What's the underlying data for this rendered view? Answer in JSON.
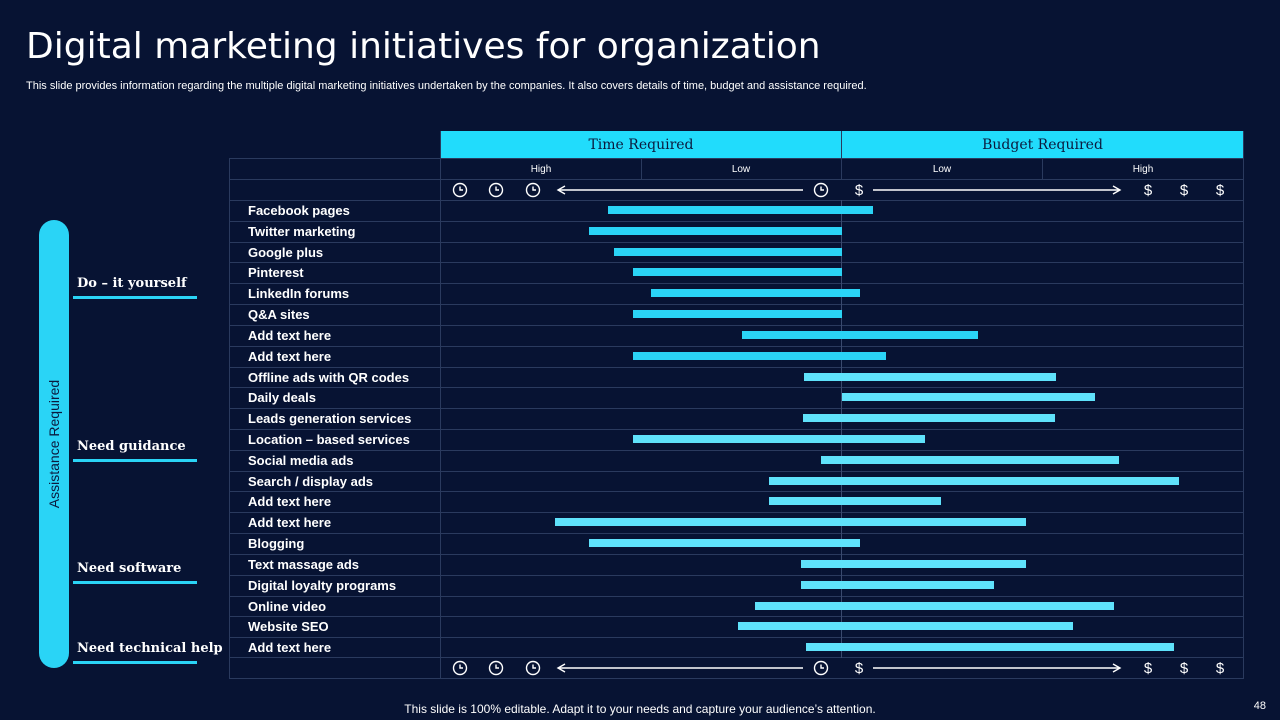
{
  "title": "Digital marketing initiatives for organization",
  "subtitle": "This slide provides information regarding the multiple digital marketing initiatives undertaken by the companies. It also covers details of time, budget and assistance required.",
  "side_label": "Assistance Required",
  "categories": [
    "Do – it yourself",
    "Need guidance",
    "Need software",
    "Need technical help"
  ],
  "header": {
    "time": "Time Required",
    "budget": "Budget Required"
  },
  "sub_header": {
    "time_high": "High",
    "time_low": "Low",
    "budget_low": "Low",
    "budget_high": "High"
  },
  "icons": {
    "time": "clock-icon",
    "budget": "dollar-sign-icon",
    "dollar_glyph": "$"
  },
  "colors": {
    "background": "#071333",
    "accent": "#21dcfc",
    "bar": "#2ad4f6",
    "bar_light": "#5fe2fb"
  },
  "chart_data": {
    "type": "range-bar",
    "x_axis": "Time required (left, high) to budget required (right, high)",
    "scale": "0 = highest time, 0.5 = midpoint, 1 = highest budget",
    "rows": [
      {
        "label": "Facebook pages",
        "start": 0.208,
        "end": 0.539
      },
      {
        "label": "Twitter marketing",
        "start": 0.185,
        "end": 0.5
      },
      {
        "label": "Google plus",
        "start": 0.216,
        "end": 0.5
      },
      {
        "label": "Pinterest",
        "start": 0.24,
        "end": 0.5
      },
      {
        "label": "LinkedIn forums",
        "start": 0.262,
        "end": 0.522
      },
      {
        "label": "Q&A sites",
        "start": 0.24,
        "end": 0.5
      },
      {
        "label": "Add text here",
        "start": 0.375,
        "end": 0.67
      },
      {
        "label": "Add text here",
        "start": 0.24,
        "end": 0.555
      },
      {
        "label": "Offline ads with QR codes",
        "start": 0.452,
        "end": 0.767
      },
      {
        "label": "Daily deals",
        "start": 0.5,
        "end": 0.816
      },
      {
        "label": "Leads generation services",
        "start": 0.451,
        "end": 0.765
      },
      {
        "label": "Location – based services",
        "start": 0.24,
        "end": 0.603
      },
      {
        "label": "Social  media ads",
        "start": 0.474,
        "end": 0.846
      },
      {
        "label": "Search / display ads",
        "start": 0.409,
        "end": 0.92
      },
      {
        "label": "Add text here",
        "start": 0.409,
        "end": 0.623
      },
      {
        "label": "Add text here",
        "start": 0.142,
        "end": 0.73
      },
      {
        "label": "Blogging",
        "start": 0.185,
        "end": 0.522
      },
      {
        "label": "Text massage ads",
        "start": 0.449,
        "end": 0.73
      },
      {
        "label": "Digital loyalty programs",
        "start": 0.449,
        "end": 0.689
      },
      {
        "label": "Online video",
        "start": 0.392,
        "end": 0.839
      },
      {
        "label": "Website SEO",
        "start": 0.37,
        "end": 0.788
      },
      {
        "label": "Add text here",
        "start": 0.455,
        "end": 0.914
      }
    ]
  },
  "footer": "This slide is 100% editable. Adapt it to your needs and capture your audience’s attention.",
  "page_number": "48"
}
